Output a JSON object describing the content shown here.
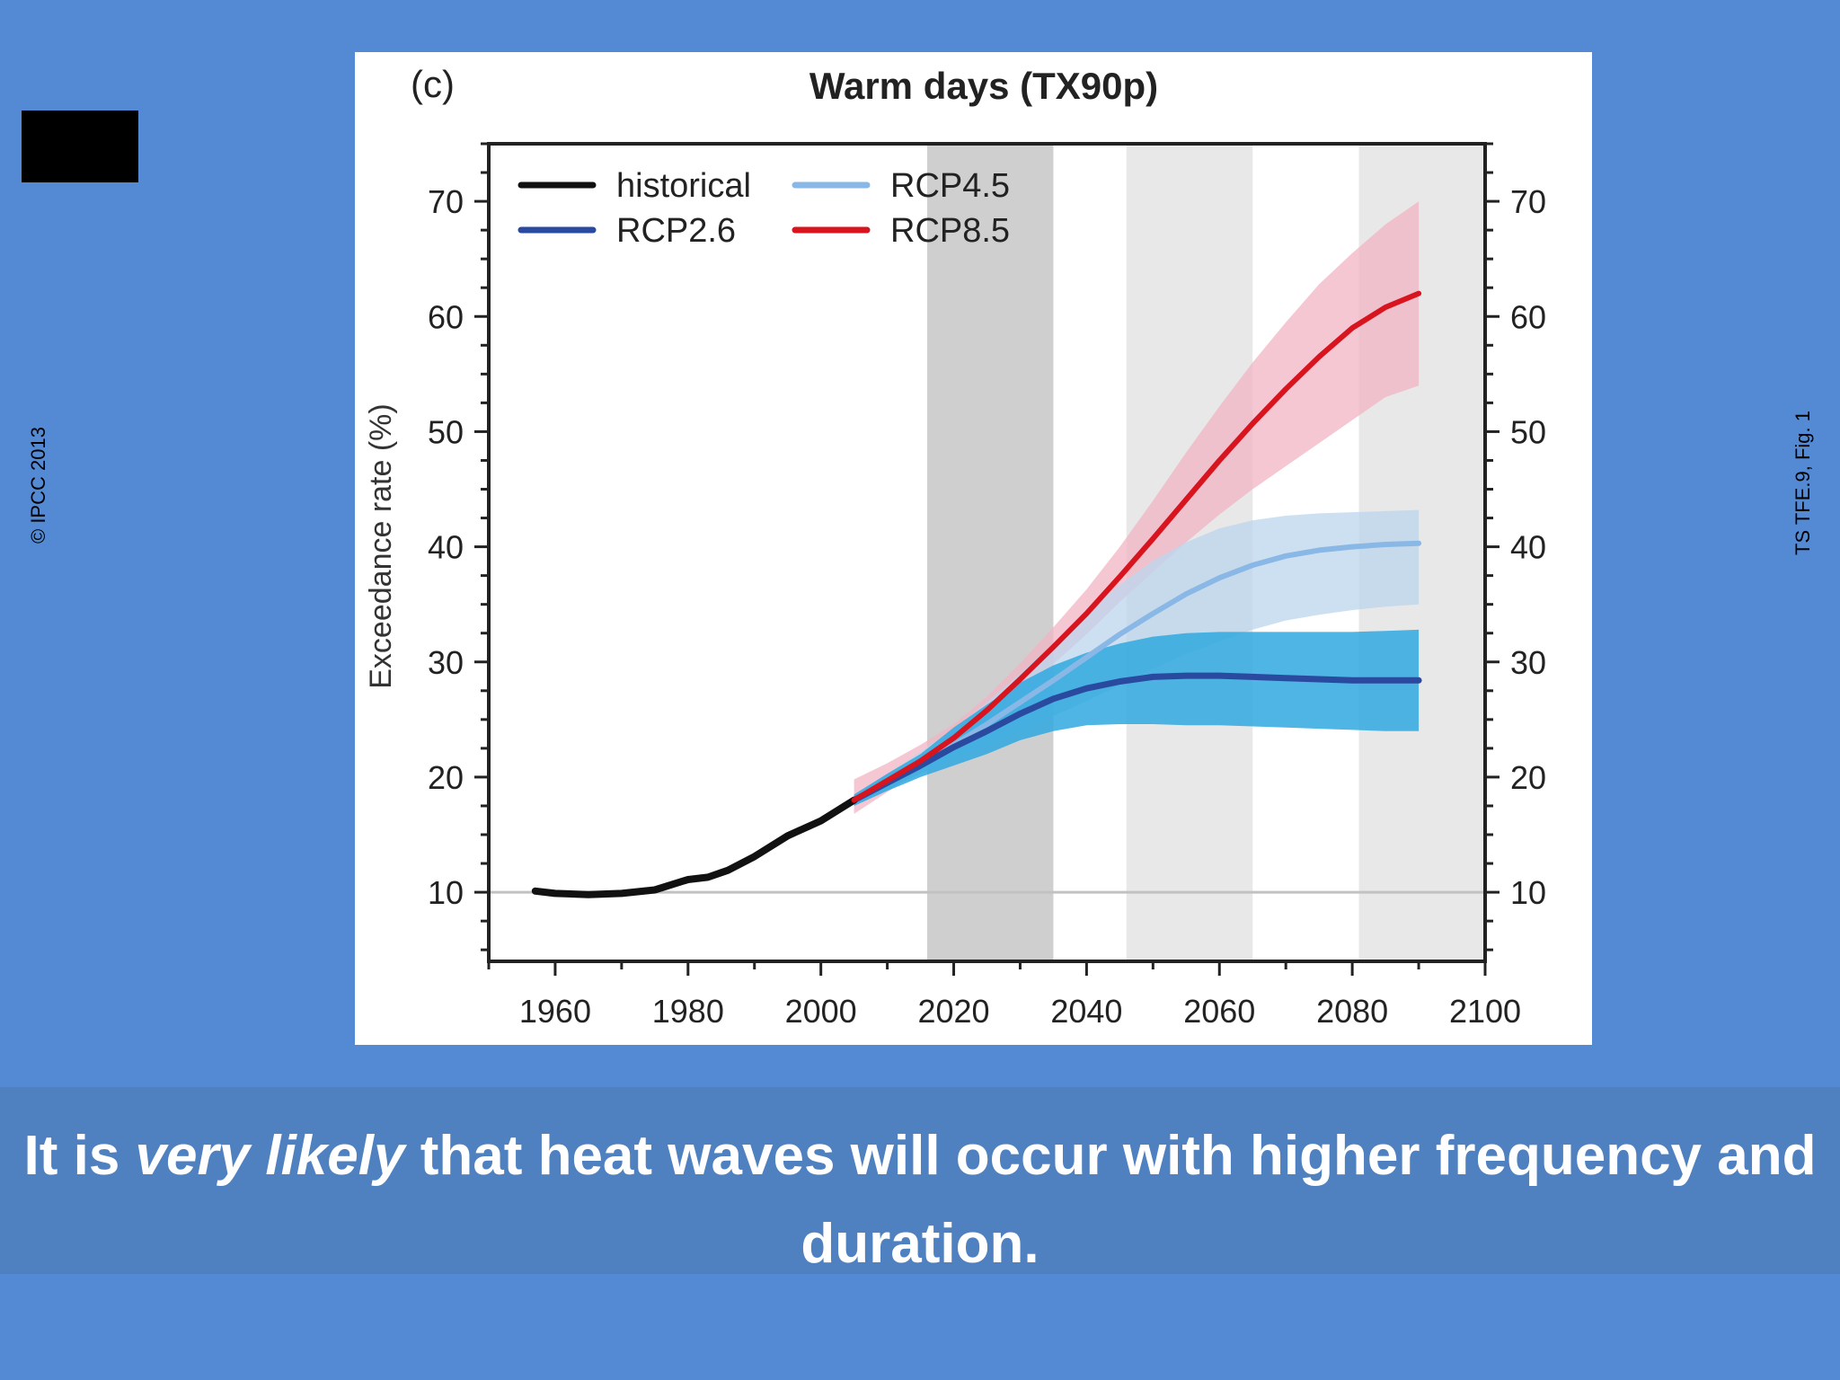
{
  "slide": {
    "copyright": "© IPCC 2013",
    "reference": "TS TFE.9, Fig. 1",
    "caption_pre": "It is ",
    "caption_em": "very likely",
    "caption_post": " that heat waves will occur with higher frequency and duration."
  },
  "colors": {
    "background": "#548ad4",
    "banner": "#4f80c0",
    "historical": "#111111",
    "rcp26": "#2a4aa0",
    "rcp45": "#8ab8e6",
    "rcp85": "#d8141e",
    "band_rcp85": "#f2b4c4",
    "band_rcp45": "#bcd6ee",
    "band_rcp26": "#2fa8df",
    "period_shade": "#d6d6d6"
  },
  "chart_data": {
    "type": "line",
    "panel_label": "(c)",
    "title": "Warm days (TX90p)",
    "xlabel": "",
    "ylabel": "Exceedance rate (%)",
    "xlim": [
      1950,
      2100
    ],
    "ylim": [
      4,
      75
    ],
    "x_ticks": [
      1960,
      1980,
      2000,
      2020,
      2040,
      2060,
      2080,
      2100
    ],
    "y_ticks": [
      10,
      20,
      30,
      40,
      50,
      60,
      70
    ],
    "reference_line": 10,
    "shaded_periods": [
      {
        "from": 2016,
        "to": 2035,
        "shade": "dark"
      },
      {
        "from": 2046,
        "to": 2065,
        "shade": "light"
      },
      {
        "from": 2081,
        "to": 2100,
        "shade": "light"
      }
    ],
    "legend_position": "top-left",
    "legend": [
      "historical",
      "RCP4.5",
      "RCP2.6",
      "RCP8.5"
    ],
    "series": [
      {
        "name": "historical",
        "key": "historical",
        "x": [
          1957,
          1960,
          1965,
          1970,
          1975,
          1980,
          1983,
          1986,
          1990,
          1995,
          2000,
          2005
        ],
        "y": [
          10.1,
          9.9,
          9.8,
          9.9,
          10.2,
          11.1,
          11.3,
          11.9,
          13.1,
          14.9,
          16.2,
          18.0
        ]
      },
      {
        "name": "RCP2.6",
        "key": "rcp26",
        "x": [
          2005,
          2010,
          2015,
          2020,
          2025,
          2030,
          2035,
          2040,
          2045,
          2050,
          2055,
          2060,
          2065,
          2070,
          2075,
          2080,
          2085,
          2090
        ],
        "y": [
          18.0,
          19.5,
          21.0,
          22.6,
          24.0,
          25.5,
          26.8,
          27.7,
          28.3,
          28.7,
          28.8,
          28.8,
          28.7,
          28.6,
          28.5,
          28.4,
          28.4,
          28.4
        ],
        "band_lo": [
          17.5,
          18.8,
          20.0,
          21.0,
          22.0,
          23.2,
          24.0,
          24.5,
          24.6,
          24.6,
          24.5,
          24.5,
          24.4,
          24.3,
          24.2,
          24.1,
          24.0,
          24.0
        ],
        "band_hi": [
          18.5,
          20.3,
          22.0,
          24.3,
          26.3,
          28.2,
          29.7,
          30.8,
          31.6,
          32.2,
          32.5,
          32.6,
          32.6,
          32.6,
          32.6,
          32.6,
          32.7,
          32.8
        ]
      },
      {
        "name": "RCP4.5",
        "key": "rcp45",
        "x": [
          2005,
          2010,
          2015,
          2020,
          2025,
          2030,
          2035,
          2040,
          2045,
          2050,
          2055,
          2060,
          2065,
          2070,
          2075,
          2080,
          2085,
          2090
        ],
        "y": [
          18.0,
          19.6,
          21.2,
          22.8,
          24.6,
          26.5,
          28.4,
          30.4,
          32.4,
          34.2,
          35.9,
          37.3,
          38.4,
          39.2,
          39.7,
          40.0,
          40.2,
          40.3
        ],
        "band_lo": [
          17.5,
          18.9,
          20.3,
          21.5,
          22.8,
          24.0,
          25.3,
          26.6,
          28.0,
          29.4,
          30.7,
          31.8,
          32.8,
          33.6,
          34.1,
          34.5,
          34.8,
          35.0
        ],
        "band_hi": [
          18.5,
          20.3,
          22.2,
          24.2,
          26.5,
          29.0,
          31.6,
          34.2,
          36.7,
          38.8,
          40.4,
          41.6,
          42.3,
          42.7,
          42.9,
          43.0,
          43.1,
          43.2
        ]
      },
      {
        "name": "RCP8.5",
        "key": "rcp85",
        "x": [
          2005,
          2010,
          2015,
          2020,
          2025,
          2030,
          2035,
          2040,
          2045,
          2050,
          2055,
          2060,
          2065,
          2070,
          2075,
          2080,
          2085,
          2090
        ],
        "y": [
          18.0,
          19.7,
          21.4,
          23.4,
          25.8,
          28.5,
          31.3,
          34.2,
          37.4,
          40.7,
          44.1,
          47.5,
          50.7,
          53.7,
          56.5,
          59.0,
          60.8,
          62.0
        ],
        "band_lo": [
          16.8,
          18.7,
          20.6,
          22.5,
          24.8,
          27.2,
          29.8,
          32.4,
          35.2,
          37.8,
          40.4,
          42.8,
          45.0,
          47.0,
          49.0,
          51.0,
          53.0,
          54.0
        ],
        "band_hi": [
          19.8,
          21.2,
          22.8,
          24.6,
          27.0,
          29.9,
          33.0,
          36.3,
          40.0,
          44.0,
          48.2,
          52.2,
          56.0,
          59.5,
          62.8,
          65.5,
          68.0,
          70.0
        ]
      }
    ]
  }
}
